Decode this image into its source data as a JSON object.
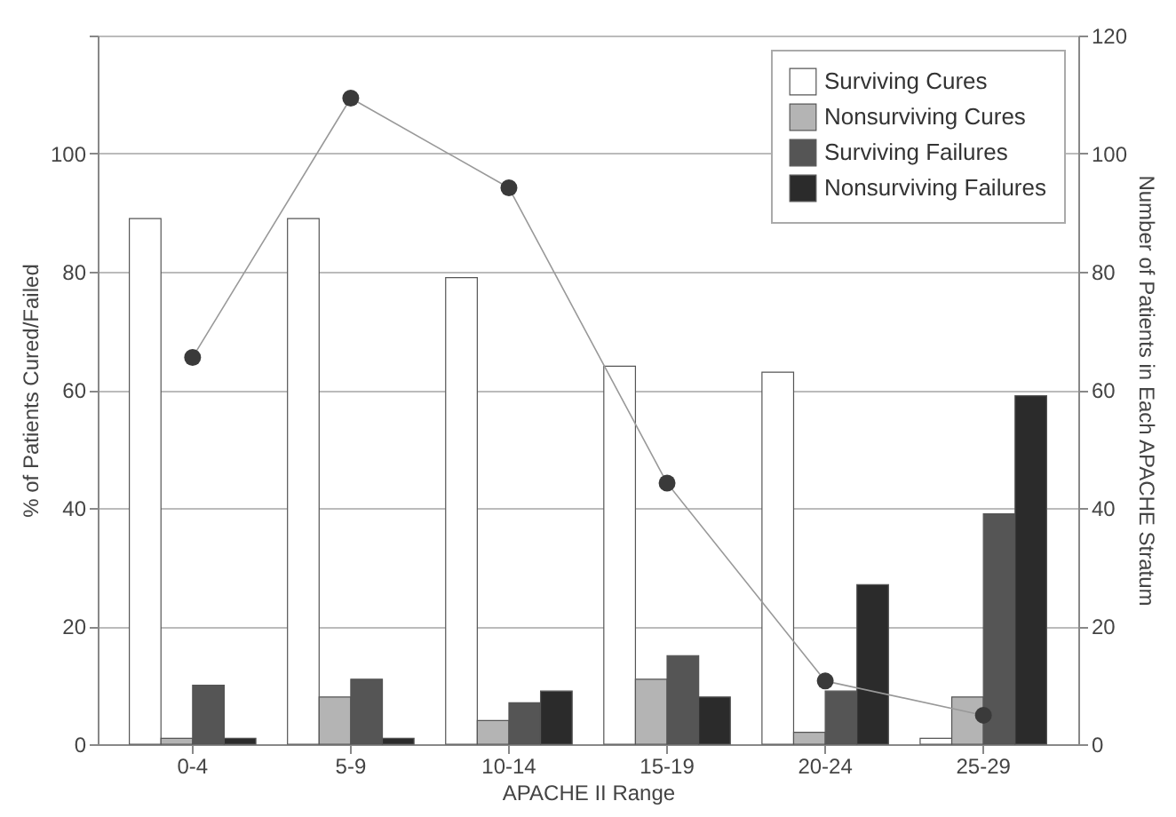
{
  "chart_data": {
    "type": "bar",
    "xlabel": "APACHE II Range",
    "ylabel": "% of Patients Cured/Failed",
    "y2label": "Number of Patients in Each APACHE Stratum",
    "categories": [
      "0-4",
      "5-9",
      "10-14",
      "15-19",
      "20-24",
      "25-29"
    ],
    "series": [
      {
        "name": "Surviving Cures",
        "color": "#ffffff",
        "values": [
          89,
          89,
          79,
          64,
          63,
          1
        ]
      },
      {
        "name": "Nonsurviving Cures",
        "color": "#b4b4b4",
        "values": [
          1,
          8,
          4,
          11,
          2,
          8
        ]
      },
      {
        "name": "Surviving Failures",
        "color": "#555555",
        "values": [
          10,
          11,
          7,
          15,
          9,
          39
        ]
      },
      {
        "name": "Nonsurviving Failures",
        "color": "#2b2b2b",
        "values": [
          1,
          1,
          9,
          8,
          27,
          59
        ]
      },
      {
        "type": "line",
        "axis": "y2",
        "color": "#3a3a3a",
        "values": [
          65.5,
          109.4,
          94.2,
          44.2,
          10.7,
          4.9
        ]
      }
    ],
    "ylim": [
      0,
      120
    ],
    "yticks": [
      0,
      20,
      40,
      60,
      80,
      100,
      {
        "value": 120,
        "label": null
      }
    ],
    "y2lim": [
      0,
      120
    ],
    "y2ticks": [
      0,
      20,
      40,
      60,
      80,
      100,
      120
    ],
    "grid": "y",
    "legend": "top right",
    "marker": "circle"
  }
}
